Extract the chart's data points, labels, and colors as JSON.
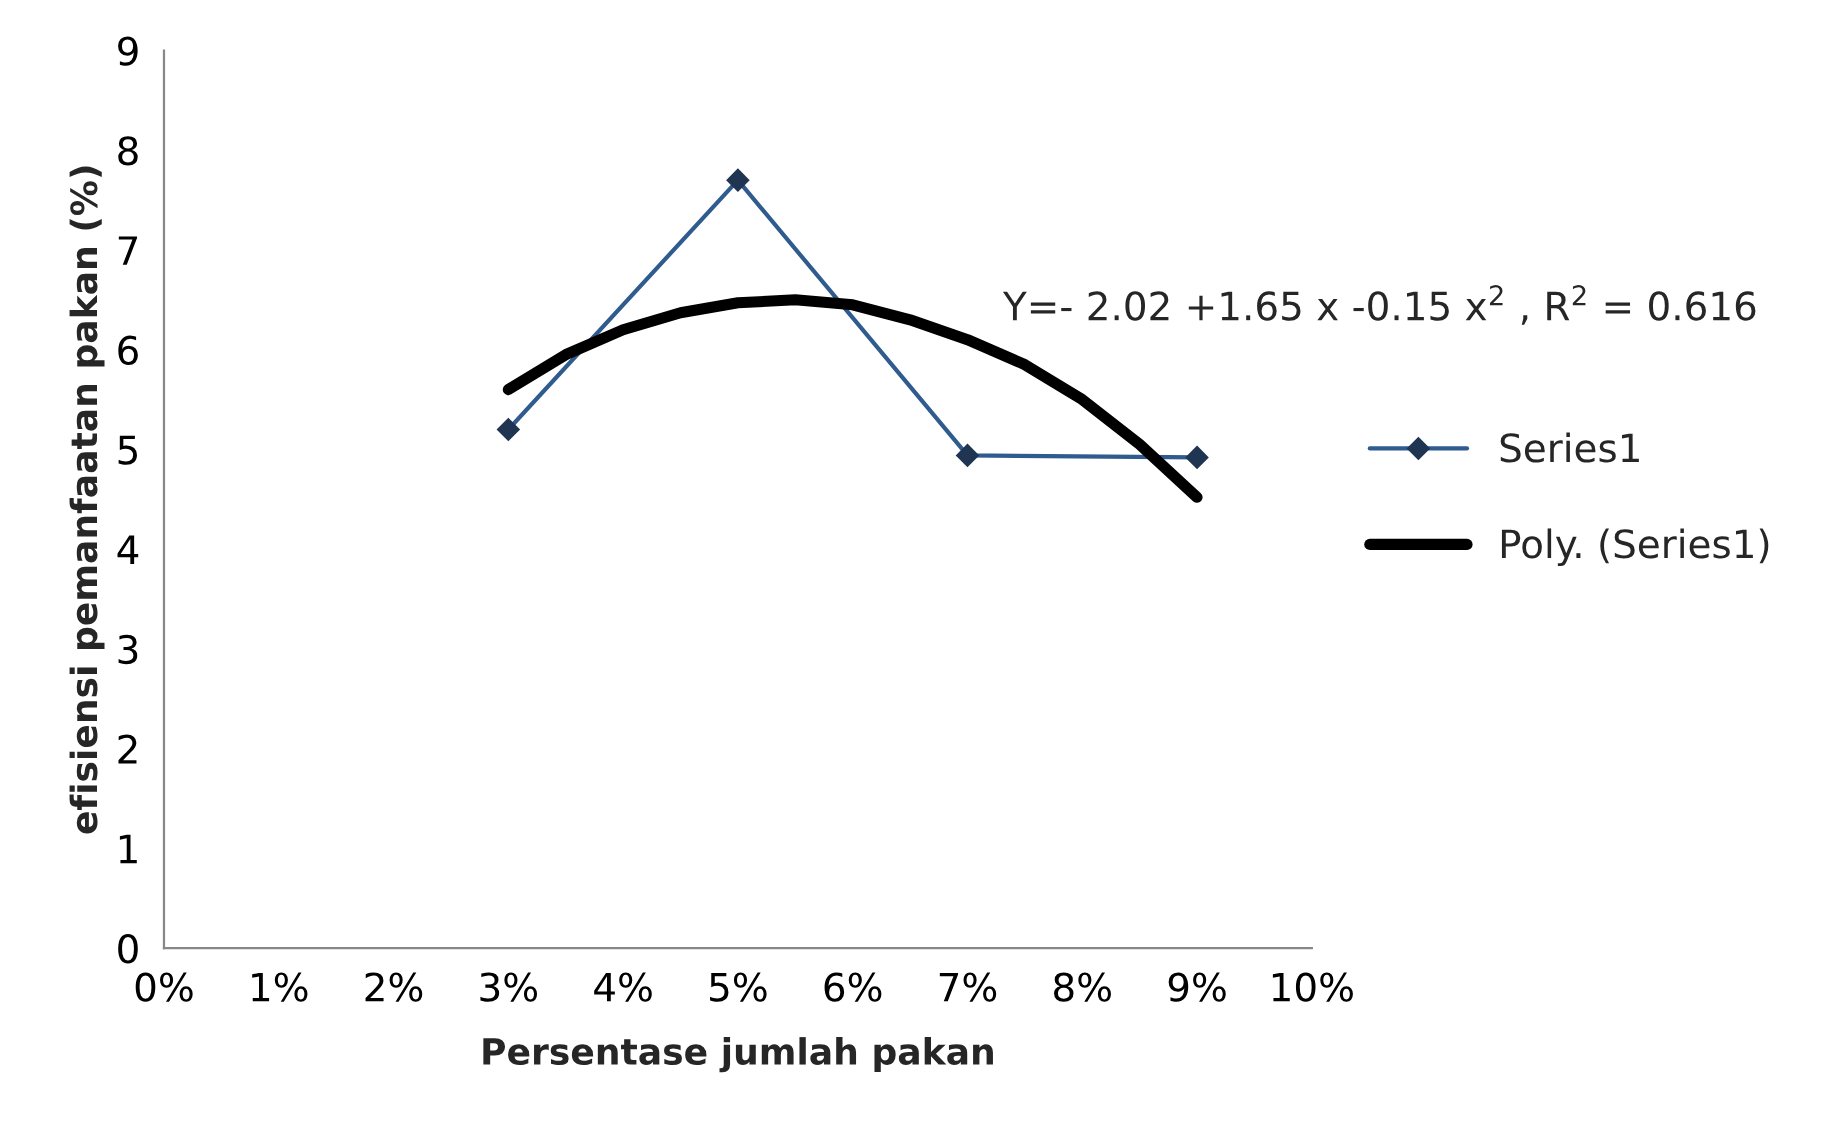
{
  "chart_data": {
    "type": "line",
    "xlabel": "Persentase jumlah pakan",
    "ylabel": "efisiensi pemanfaatan pakan (%)",
    "xlim": [
      0,
      10
    ],
    "xticks": [
      {
        "value": 0,
        "label": "0%"
      },
      {
        "value": 1,
        "label": "1%"
      },
      {
        "value": 2,
        "label": "2%"
      },
      {
        "value": 3,
        "label": "3%"
      },
      {
        "value": 4,
        "label": "4%"
      },
      {
        "value": 5,
        "label": "5%"
      },
      {
        "value": 6,
        "label": "6%"
      },
      {
        "value": 7,
        "label": "7%"
      },
      {
        "value": 8,
        "label": "8%"
      },
      {
        "value": 9,
        "label": "9%"
      },
      {
        "value": 10,
        "label": "10%"
      }
    ],
    "ylim": [
      0,
      9
    ],
    "yticks": [
      0,
      1,
      2,
      3,
      4,
      5,
      6,
      7,
      8,
      9
    ],
    "grid": false,
    "legend": "right",
    "annotations": [
      "Y=- 2.02 +1.65 x -0.15 x$^{2}$ , R$^{2}$ = 0.616"
    ],
    "series": [
      {
        "name": "Series1",
        "color": "#2f5b8e",
        "marker": "diamond",
        "line_style": "solid",
        "x": [
          3,
          5,
          7,
          9
        ],
        "values": [
          5.2,
          7.7,
          4.94,
          4.92
        ]
      },
      {
        "name": "Poly. (Series1)",
        "color": "#000000",
        "marker": "none",
        "line_style": "solid",
        "x": [
          3,
          3.5,
          4,
          4.5,
          5,
          5.5,
          6,
          6.5,
          7,
          7.5,
          8,
          8.5,
          9
        ],
        "values": [
          5.6,
          5.95,
          6.2,
          6.37,
          6.47,
          6.5,
          6.45,
          6.3,
          6.1,
          5.85,
          5.5,
          5.05,
          4.52
        ]
      }
    ]
  }
}
